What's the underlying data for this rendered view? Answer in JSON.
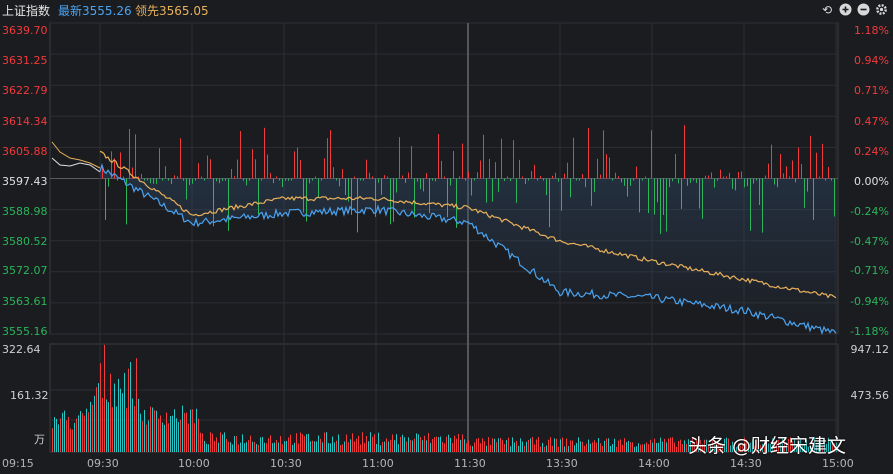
{
  "header": {
    "index_name": "上证指数",
    "latest_label": "最新",
    "latest_value": "3555.26",
    "lead_label": "领先",
    "lead_value": "3565.05",
    "icons": [
      "undo-icon",
      "zoom-in-icon",
      "zoom-out-icon",
      "settings-icon"
    ]
  },
  "colors": {
    "background": "#1b1c20",
    "up": "#f23a3a",
    "down": "#2ab55a",
    "neutral": "#e0e0e0",
    "price_line": "#4aa3f0",
    "avg_line": "#e8b15a",
    "latest_text": "#4aa3f0",
    "lead_text": "#e8b15a"
  },
  "price_axis": {
    "left_labels": [
      "3639.70",
      "3631.25",
      "3622.79",
      "3614.34",
      "3605.88",
      "3597.43",
      "3588.98",
      "3580.52",
      "3572.07",
      "3563.61",
      "3555.16"
    ],
    "right_labels": [
      "1.18%",
      "0.94%",
      "0.71%",
      "0.47%",
      "0.24%",
      "0.00%",
      "-0.24%",
      "-0.47%",
      "-0.71%",
      "-0.94%",
      "-1.18%"
    ]
  },
  "volume_axis": {
    "left_labels": [
      "322.64",
      "161.32",
      "万"
    ],
    "right_labels": [
      "947.12",
      "473.56"
    ]
  },
  "time_axis": [
    "09:15",
    "09:30",
    "10:00",
    "10:30",
    "11:00",
    "11:30",
    "13:30",
    "14:00",
    "14:30",
    "15:00"
  ],
  "watermark": "头条 @财经宋建文",
  "chart_data": {
    "type": "line",
    "x": [
      "09:30",
      "10:00",
      "10:30",
      "11:00",
      "11:30/13:00",
      "13:30",
      "14:00",
      "14:30",
      "15:00"
    ],
    "prev_close": 3597.43,
    "ylim": [
      3555.16,
      3639.7
    ],
    "series": [
      {
        "name": "最新",
        "values": [
          3600.5,
          3585.3,
          3588.0,
          3589.0,
          3585.5,
          3566.5,
          3565.0,
          3561.5,
          3555.3
        ]
      },
      {
        "name": "领先",
        "values": [
          3604.5,
          3587.5,
          3592.0,
          3592.0,
          3589.5,
          3580.5,
          3575.0,
          3570.0,
          3565.0
        ]
      }
    ],
    "volume_ylim": [
      0,
      322.64
    ],
    "volume_unit": "万"
  }
}
